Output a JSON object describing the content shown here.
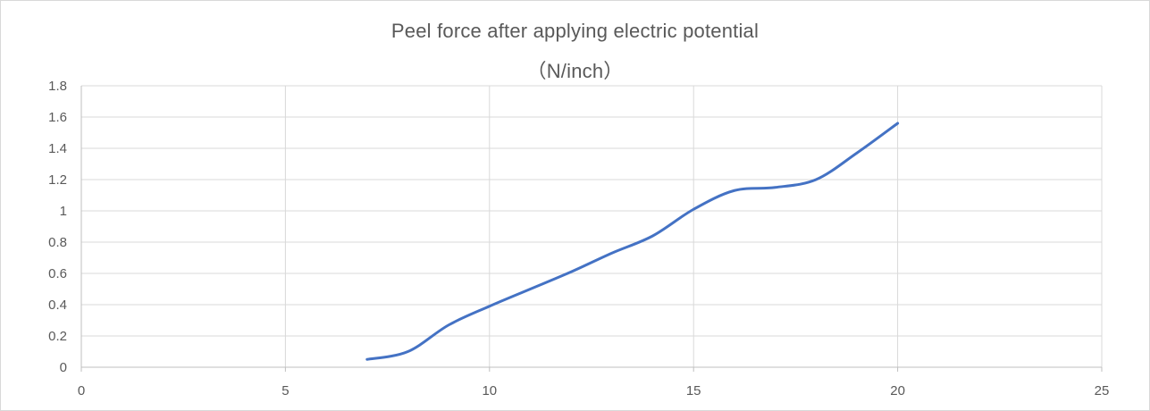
{
  "chart_data": {
    "type": "line",
    "title": "Peel force after applying electric potential",
    "subtitle": "（N/inch）",
    "xlabel": "",
    "ylabel": "",
    "xlim": [
      0,
      25
    ],
    "ylim": [
      0,
      1.8
    ],
    "x_ticks": [
      0,
      5,
      10,
      15,
      20,
      25
    ],
    "y_ticks": [
      0,
      0.2,
      0.4,
      0.6,
      0.8,
      1,
      1.2,
      1.4,
      1.6,
      1.8
    ],
    "x_tick_labels": [
      "0",
      "5",
      "10",
      "15",
      "20",
      "25"
    ],
    "y_tick_labels": [
      "0",
      "0.2",
      "0.4",
      "0.6",
      "0.8",
      "1",
      "1.2",
      "1.4",
      "1.6",
      "1.8"
    ],
    "grid": true,
    "smooth": true,
    "series": [
      {
        "color": "#4472c4",
        "x": [
          7,
          8,
          9,
          10,
          11,
          12,
          13,
          14,
          15,
          16,
          17,
          18,
          19,
          20
        ],
        "y": [
          0.05,
          0.1,
          0.27,
          0.39,
          0.5,
          0.61,
          0.73,
          0.84,
          1.01,
          1.13,
          1.15,
          1.2,
          1.37,
          1.56
        ]
      }
    ]
  }
}
